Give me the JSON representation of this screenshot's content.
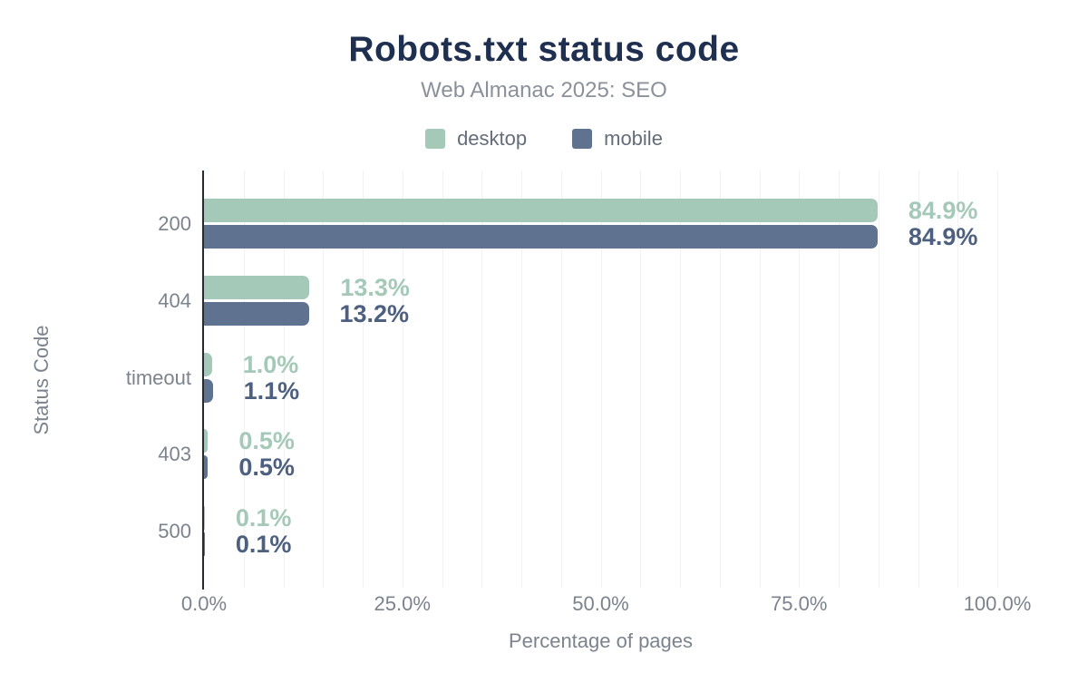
{
  "header": {
    "title": "Robots.txt status code",
    "subtitle": "Web Almanac 2025: SEO"
  },
  "legend": {
    "items": [
      {
        "label": "desktop",
        "color": "#a5c9b8"
      },
      {
        "label": "mobile",
        "color": "#5f7390"
      }
    ]
  },
  "axes": {
    "x_label": "Percentage of pages",
    "y_label": "Status Code",
    "x_ticks": [
      {
        "label": "0.0%",
        "value": 0
      },
      {
        "label": "25.0%",
        "value": 25
      },
      {
        "label": "50.0%",
        "value": 50
      },
      {
        "label": "75.0%",
        "value": 75
      },
      {
        "label": "100.0%",
        "value": 100
      }
    ]
  },
  "chart_data": {
    "type": "bar",
    "orientation": "horizontal",
    "title": "Robots.txt status code",
    "subtitle": "Web Almanac 2025: SEO",
    "xlabel": "Percentage of pages",
    "ylabel": "Status Code",
    "xlim": [
      0,
      100
    ],
    "minor_gridline_step_pct": 5,
    "grid": true,
    "legend_position": "top",
    "categories": [
      "200",
      "404",
      "timeout",
      "403",
      "500"
    ],
    "series": [
      {
        "name": "desktop",
        "color": "#a5c9b8",
        "label_color": "#a5c9b8",
        "values": [
          84.9,
          13.3,
          1.0,
          0.5,
          0.1
        ],
        "value_labels": [
          "84.9%",
          "13.3%",
          "1.0%",
          "0.5%",
          "0.1%"
        ]
      },
      {
        "name": "mobile",
        "color": "#5f7390",
        "label_color": "#4d6080",
        "values": [
          84.9,
          13.2,
          1.1,
          0.5,
          0.1
        ],
        "value_labels": [
          "84.9%",
          "13.2%",
          "1.1%",
          "0.5%",
          "0.1%"
        ]
      }
    ]
  },
  "style": {
    "title_color": "#1e2f50",
    "subtitle_color": "#8b919b",
    "axis_text_color": "#7c838d",
    "legend_text_color": "#646d79",
    "gridline_color": "#f2f2f4",
    "axis_line_color": "#262b31",
    "background": "#ffffff"
  }
}
